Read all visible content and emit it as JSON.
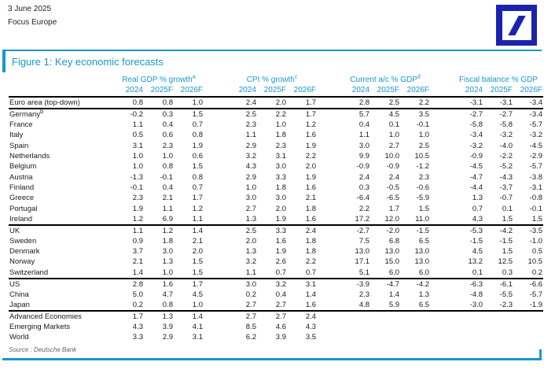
{
  "page": {
    "date": "3 June 2025",
    "publication": "Focus Europe"
  },
  "logo": {
    "name": "deutsche-bank-logo",
    "color": "#1B23AC"
  },
  "figure": {
    "title": "Figure 1: Key economic forecasts",
    "accent_color": "#1A96CC",
    "source": "Source : Deutsche Bank"
  },
  "table": {
    "col_groups": [
      {
        "label": "Real GDP % growth",
        "sup": "a"
      },
      {
        "label": "CPI % growth",
        "sup": "c"
      },
      {
        "label": "Current a/c % GDP",
        "sup": "d"
      },
      {
        "label": "Fiscal balance % GDP",
        "sup": ""
      }
    ],
    "year_cols": [
      "2024",
      "2025F",
      "2026F"
    ],
    "rows": [
      {
        "label": "Euro area (top-down)",
        "sup": "",
        "divider_after": true,
        "values": [
          "0.8",
          "0.8",
          "1.0",
          "2.4",
          "2.0",
          "1.7",
          "2.8",
          "2.5",
          "2.2",
          "-3.1",
          "-3.1",
          "-3.4"
        ]
      },
      {
        "label": "Germany",
        "sup": "b",
        "divider_after": false,
        "values": [
          "-0.2",
          "0.3",
          "1.5",
          "2.5",
          "2.2",
          "1.7",
          "5.7",
          "4.5",
          "3.5",
          "-2.7",
          "-2.7",
          "-3.4"
        ]
      },
      {
        "label": "France",
        "sup": "",
        "divider_after": false,
        "values": [
          "1.1",
          "0.4",
          "0.7",
          "2.3",
          "1.0",
          "1.2",
          "0.4",
          "0.1",
          "-0.1",
          "-5.8",
          "-5.8",
          "-5.7"
        ]
      },
      {
        "label": "Italy",
        "sup": "",
        "divider_after": false,
        "values": [
          "0.5",
          "0.6",
          "0.8",
          "1.1",
          "1.8",
          "1.6",
          "1.1",
          "1.0",
          "1.0",
          "-3.4",
          "-3.2",
          "-3.2"
        ]
      },
      {
        "label": "Spain",
        "sup": "",
        "divider_after": false,
        "values": [
          "3.1",
          "2.3",
          "1.9",
          "2.9",
          "2.3",
          "1.9",
          "3.0",
          "2.7",
          "2.5",
          "-3.2",
          "-4.0",
          "-4.5"
        ]
      },
      {
        "label": "Netherlands",
        "sup": "",
        "divider_after": false,
        "values": [
          "1.0",
          "1.0",
          "0.6",
          "3.2",
          "3.1",
          "2.2",
          "9.9",
          "10.0",
          "10.5",
          "-0.9",
          "-2.2",
          "-2.9"
        ]
      },
      {
        "label": "Belgium",
        "sup": "",
        "divider_after": false,
        "values": [
          "1.0",
          "0.8",
          "1.5",
          "4.3",
          "3.0",
          "2.0",
          "-0.9",
          "-0.9",
          "-1.2",
          "-4.5",
          "-5.2",
          "-5.7"
        ]
      },
      {
        "label": "Austria",
        "sup": "",
        "divider_after": false,
        "values": [
          "-1.3",
          "-0.1",
          "0.8",
          "2.9",
          "3.3",
          "1.9",
          "2.4",
          "2.4",
          "2.3",
          "-4.7",
          "-4.3",
          "-3.8"
        ]
      },
      {
        "label": "Finland",
        "sup": "",
        "divider_after": false,
        "values": [
          "-0.1",
          "0.4",
          "0.7",
          "1.0",
          "1.8",
          "1.6",
          "0.3",
          "-0.5",
          "-0.6",
          "-4.4",
          "-3.7",
          "-3.1"
        ]
      },
      {
        "label": "Greece",
        "sup": "",
        "divider_after": false,
        "values": [
          "2.3",
          "2.1",
          "1.7",
          "3.0",
          "3.0",
          "2.1",
          "-6.4",
          "-6.5",
          "-5.9",
          "1.3",
          "-0.7",
          "-0.8"
        ]
      },
      {
        "label": "Portugal",
        "sup": "",
        "divider_after": false,
        "values": [
          "1.9",
          "1.1",
          "1.2",
          "2.7",
          "2.0",
          "1.8",
          "2.2",
          "1.7",
          "1.5",
          "0.7",
          "0.1",
          "-0.1"
        ]
      },
      {
        "label": "Ireland",
        "sup": "",
        "divider_after": true,
        "values": [
          "1.2",
          "6.9",
          "1.1",
          "1.3",
          "1.9",
          "1.6",
          "17.2",
          "12.0",
          "11.0",
          "4.3",
          "1.5",
          "1.5"
        ]
      },
      {
        "label": "UK",
        "sup": "",
        "divider_after": false,
        "values": [
          "1.1",
          "1.2",
          "1.4",
          "2.5",
          "3.3",
          "2.4",
          "-2.7",
          "-2.0",
          "-1.5",
          "-5.3",
          "-4.2",
          "-3.5"
        ]
      },
      {
        "label": "Sweden",
        "sup": "",
        "divider_after": false,
        "values": [
          "0.9",
          "1.8",
          "2.1",
          "2.0",
          "1.6",
          "1.8",
          "7.5",
          "6.8",
          "6.5",
          "-1.5",
          "-1.5",
          "-1.0"
        ]
      },
      {
        "label": "Denmark",
        "sup": "",
        "divider_after": false,
        "values": [
          "3.7",
          "3.0",
          "2.0",
          "1.3",
          "1.9",
          "1.8",
          "13.0",
          "13.0",
          "13.0",
          "4.5",
          "1.5",
          "0.5"
        ]
      },
      {
        "label": "Norway",
        "sup": "",
        "divider_after": false,
        "values": [
          "2.1",
          "1.3",
          "1.5",
          "3.2",
          "2.6",
          "2.2",
          "17.1",
          "15.0",
          "13.0",
          "13.2",
          "12.5",
          "10.5"
        ]
      },
      {
        "label": "Switzerland",
        "sup": "",
        "divider_after": true,
        "values": [
          "1.4",
          "1.0",
          "1.5",
          "1.1",
          "0.7",
          "0.7",
          "5.1",
          "6.0",
          "6.0",
          "0.1",
          "0.3",
          "0.2"
        ]
      },
      {
        "label": "US",
        "sup": "",
        "divider_after": false,
        "values": [
          "2.8",
          "1.6",
          "1.7",
          "3.0",
          "3.2",
          "3.1",
          "-3.9",
          "-4.7",
          "-4.2",
          "-6.3",
          "-6.1",
          "-6.6"
        ]
      },
      {
        "label": "China",
        "sup": "",
        "divider_after": false,
        "values": [
          "5.0",
          "4.7",
          "4.5",
          "0.2",
          "0.4",
          "1.4",
          "2.3",
          "1.4",
          "1.3",
          "-4.8",
          "-5.5",
          "-5.7"
        ]
      },
      {
        "label": "Japan",
        "sup": "",
        "divider_after": true,
        "values": [
          "0.2",
          "0.8",
          "1.0",
          "2.7",
          "2.7",
          "1.6",
          "4.8",
          "5.9",
          "6.5",
          "-3.0",
          "-2.3",
          "-1.9"
        ]
      },
      {
        "label": "Advanced Economies",
        "sup": "",
        "divider_after": false,
        "values": [
          "1.7",
          "1.3",
          "1.4",
          "2.7",
          "2.7",
          "2.4",
          "",
          "",
          "",
          "",
          "",
          ""
        ]
      },
      {
        "label": "Emerging Markets",
        "sup": "",
        "divider_after": false,
        "values": [
          "4.3",
          "3.9",
          "4.1",
          "8.5",
          "4.6",
          "4.3",
          "",
          "",
          "",
          "",
          "",
          ""
        ]
      },
      {
        "label": "World",
        "sup": "",
        "divider_after": false,
        "values": [
          "3.3",
          "2.9",
          "3.1",
          "6.2",
          "3.9",
          "3.5",
          "",
          "",
          "",
          "",
          "",
          ""
        ]
      }
    ]
  }
}
